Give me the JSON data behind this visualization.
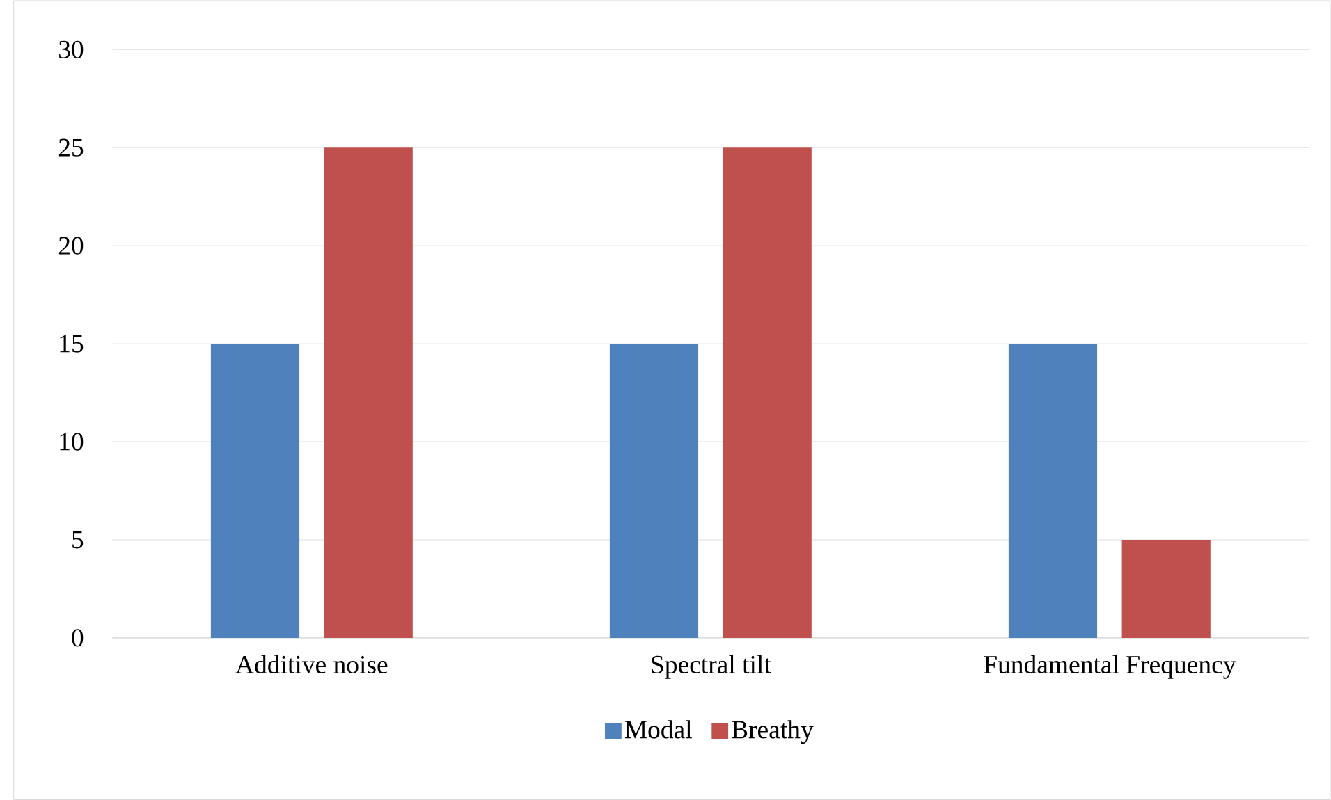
{
  "chart_data": {
    "type": "bar",
    "categories": [
      "Additive noise",
      "Spectral tilt",
      "Fundamental Frequency"
    ],
    "series": [
      {
        "name": "Modal",
        "color": "#4f81bd",
        "values": [
          15,
          15,
          15
        ]
      },
      {
        "name": "Breathy",
        "color": "#c0504d",
        "values": [
          25,
          25,
          5
        ]
      }
    ],
    "ylim": [
      0,
      30
    ],
    "yticks": [
      0,
      5,
      10,
      15,
      20,
      25,
      30
    ],
    "grid": "y",
    "legend": "bottom"
  }
}
